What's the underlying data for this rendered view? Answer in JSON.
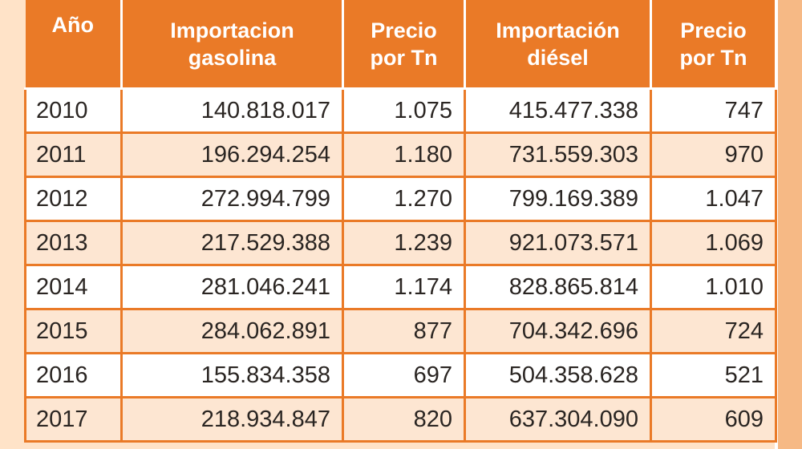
{
  "colors": {
    "header_bg": "#ea7a27",
    "header_text": "#ffffff",
    "row_alt": "#fde6d2",
    "row": "#ffffff",
    "border": "#ea7a27"
  },
  "table": {
    "headers": [
      "Año",
      "Importacion gasolina",
      "Precio por Tn",
      "Importación diésel",
      "Precio por Tn"
    ],
    "rows": [
      [
        "2010",
        "140.818.017",
        "1.075",
        "415.477.338",
        "747"
      ],
      [
        "2011",
        "196.294.254",
        "1.180",
        "731.559.303",
        "970"
      ],
      [
        "2012",
        "272.994.799",
        "1.270",
        "799.169.389",
        "1.047"
      ],
      [
        "2013",
        "217.529.388",
        "1.239",
        "921.073.571",
        "1.069"
      ],
      [
        "2014",
        "281.046.241",
        "1.174",
        "828.865.814",
        "1.010"
      ],
      [
        "2015",
        "284.062.891",
        "877",
        "704.342.696",
        "724"
      ],
      [
        "2016",
        "155.834.358",
        "697",
        "504.358.628",
        "521"
      ],
      [
        "2017",
        "218.934.847",
        "820",
        "637.304.090",
        "609"
      ]
    ]
  }
}
